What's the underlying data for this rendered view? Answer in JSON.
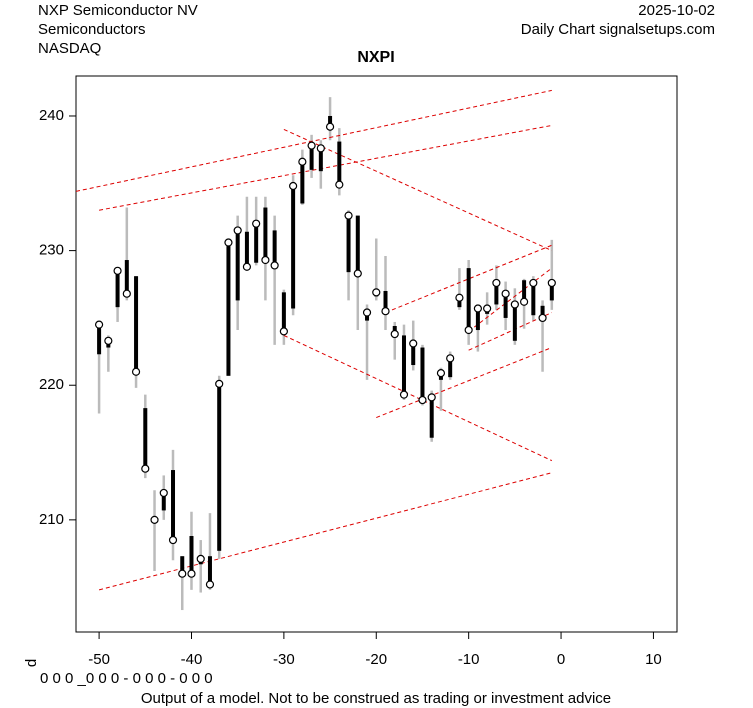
{
  "chart_data": {
    "type": "candlestick",
    "title": "NXPI",
    "header_left": [
      "NXP Semiconductor NV",
      "Semiconductors",
      "NASDAQ"
    ],
    "header_right": [
      "2025-10-02",
      "Daily Chart signalsetups.com"
    ],
    "footer": "Output of a model. Not to be construed as trading or investment advice",
    "side_label": "d",
    "bottom_code": "0 0 0 _0 0 0 - 0 0 0 - 0 0 0",
    "x": [
      -50,
      -49,
      -48,
      -47,
      -46,
      -45,
      -44,
      -43,
      -42,
      -41,
      -40,
      -39,
      -38,
      -37,
      -36,
      -35,
      -34,
      -33,
      -32,
      -31,
      -30,
      -29,
      -28,
      -27,
      -26,
      -25,
      -24,
      -23,
      -22,
      -21,
      -20,
      -19,
      -18,
      -17,
      -16,
      -15,
      -14,
      -13,
      -12,
      -11,
      -10,
      -9,
      -8,
      -7,
      -6,
      -5,
      -4,
      -3,
      -2,
      -1
    ],
    "open": [
      222.3,
      222.8,
      225.8,
      229.3,
      228.1,
      218.3,
      210.2,
      210.7,
      213.7,
      207.3,
      208.8,
      206.7,
      207.3,
      207.7,
      220.7,
      226.3,
      231.4,
      229.1,
      233.2,
      231.5,
      226.9,
      225.7,
      233.5,
      236.0,
      235.9,
      240.0,
      238.1,
      228.4,
      232.6,
      224.8,
      226.6,
      227.0,
      224.4,
      223.7,
      221.5,
      222.8,
      216.1,
      220.4,
      220.6,
      225.8,
      228.7,
      224.1,
      225.3,
      226.0,
      225.0,
      223.3,
      227.8,
      225.2,
      225.9,
      226.3
    ],
    "high": [
      224.7,
      223.7,
      228.7,
      233.2,
      228.1,
      219.3,
      212.2,
      213.3,
      215.2,
      207.3,
      210.6,
      208.5,
      210.5,
      220.7,
      230.8,
      232.6,
      234.0,
      234.0,
      234.0,
      232.6,
      227.1,
      235.6,
      237.5,
      238.6,
      238.2,
      241.4,
      239.1,
      233.0,
      232.6,
      226.0,
      230.9,
      229.6,
      224.7,
      224.5,
      224.8,
      223.0,
      219.6,
      221.3,
      222.5,
      228.7,
      229.3,
      225.9,
      226.9,
      228.9,
      227.7,
      227.2,
      227.9,
      228.1,
      226.3,
      230.8
    ],
    "low": [
      217.9,
      221.0,
      224.7,
      226.3,
      219.8,
      213.1,
      206.2,
      210.0,
      207.0,
      203.3,
      204.8,
      204.6,
      204.8,
      207.1,
      220.7,
      224.1,
      228.5,
      228.9,
      226.3,
      223.0,
      223.0,
      225.2,
      233.4,
      235.4,
      234.6,
      238.2,
      234.1,
      226.3,
      224.1,
      220.4,
      226.3,
      224.1,
      221.9,
      218.9,
      221.1,
      218.5,
      215.8,
      218.1,
      220.4,
      225.6,
      223.0,
      222.5,
      224.5,
      225.6,
      224.1,
      223.0,
      224.2,
      224.8,
      221.0,
      225.6
    ],
    "close": [
      224.5,
      223.3,
      228.5,
      226.8,
      221.0,
      213.8,
      210.0,
      212.0,
      208.5,
      206.0,
      206.0,
      207.1,
      205.2,
      220.1,
      230.6,
      231.5,
      228.8,
      232.0,
      229.3,
      228.9,
      224.0,
      234.8,
      236.6,
      237.8,
      237.6,
      239.2,
      234.9,
      232.6,
      228.3,
      225.4,
      226.9,
      225.5,
      223.8,
      219.3,
      223.1,
      218.9,
      219.1,
      220.9,
      222.0,
      226.5,
      224.1,
      225.7,
      225.7,
      227.6,
      226.8,
      226.0,
      226.2,
      227.6,
      225.0,
      227.6
    ],
    "range_color": "#bbbbbb",
    "body_color": "#000000",
    "lines": [
      {
        "x": [
          -52.5,
          -1
        ],
        "y": [
          234.4,
          241.9
        ]
      },
      {
        "x": [
          -50,
          -1
        ],
        "y": [
          233.0,
          239.3
        ]
      },
      {
        "x": [
          -30,
          -1
        ],
        "y": [
          239.0,
          230.0
        ]
      },
      {
        "x": [
          -30,
          -1
        ],
        "y": [
          223.7,
          214.4
        ]
      },
      {
        "x": [
          -50,
          -1
        ],
        "y": [
          204.8,
          213.5
        ]
      },
      {
        "x": [
          -20,
          -1
        ],
        "y": [
          217.6,
          222.8
        ]
      },
      {
        "x": [
          -19,
          -1
        ],
        "y": [
          225.4,
          230.4
        ]
      },
      {
        "x": [
          -10,
          -1
        ],
        "y": [
          224.0,
          228.7
        ]
      },
      {
        "x": [
          -10,
          -1
        ],
        "y": [
          222.6,
          225.4
        ]
      }
    ],
    "line_color": "#dd0000",
    "xlim": [
      -52.5,
      12.55
    ],
    "ylim": [
      201.67,
      242.97
    ],
    "xticks": [
      -50,
      -40,
      -30,
      -20,
      -10,
      0,
      10
    ],
    "yticks": [
      210,
      220,
      230,
      240
    ]
  }
}
